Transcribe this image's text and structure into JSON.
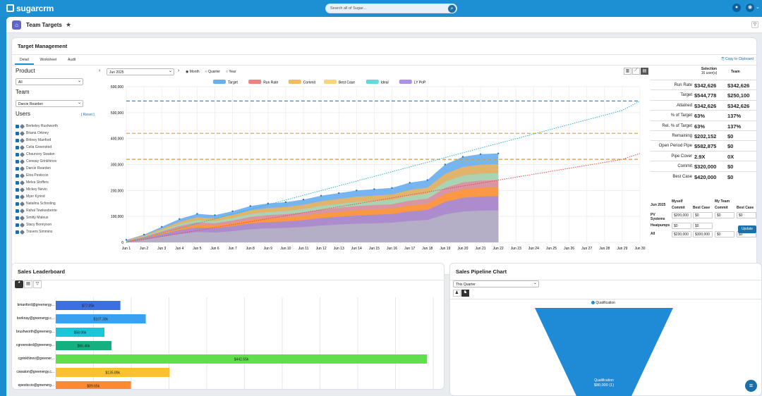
{
  "app": {
    "logo": "sugarcrm",
    "search_placeholder": "Search all of Sugar..."
  },
  "page": {
    "title": "Team Targets"
  },
  "target_management": {
    "title": "Target Management",
    "tabs": [
      "Detail",
      "Worksheet",
      "Audit"
    ],
    "copy_label": "Copy to Clipboard",
    "product_label": "Product",
    "product_value": "All",
    "team_label": "Team",
    "team_value": "Darcie Rearden",
    "users_label": "Users",
    "reset_label": "[ Reset ]",
    "users": [
      "Berkeley Rushworth",
      "Briana Orkney",
      "Britney Manford",
      "Celia Greensted",
      "Chauncey Swaton",
      "Conway Grinkhinov",
      "Darcie Rearden",
      "Elna Pesticcio",
      "Melva Stoffers",
      "Mickey Nevin",
      "Myer Kyrind",
      "Natalina Schooling",
      "Rahal Tewkesberrie",
      "Smitty Maleus",
      "Stacy Bonnyson",
      "Travers Simmins"
    ],
    "period": "Jun 2025",
    "period_options": [
      "Month",
      "Quarter",
      "Year"
    ],
    "selected_period_option": "Month"
  },
  "chart_data": {
    "type": "area",
    "legend": [
      "Target",
      "Run Rate",
      "Commit",
      "Best Case",
      "Ideal",
      "LY PoP"
    ],
    "legend_colors": [
      "#2d8ee0",
      "#e84b4b",
      "#f0a020",
      "#f5c242",
      "#26c6d0",
      "#8c5fe0"
    ],
    "x": [
      "Jun 1",
      "Jun 2",
      "Jun 3",
      "Jun 4",
      "Jun 5",
      "Jun 6",
      "Jun 7",
      "Jun 8",
      "Jun 9",
      "Jun 10",
      "Jun 11",
      "Jun 12",
      "Jun 13",
      "Jun 14",
      "Jun 15",
      "Jun 16",
      "Jun 17",
      "Jun 18",
      "Jun 19",
      "Jun 20",
      "Jun 21",
      "Jun 22",
      "Jun 23",
      "Jun 24",
      "Jun 25",
      "Jun 26",
      "Jun 27",
      "Jun 28",
      "Jun 29",
      "Jun 30"
    ],
    "ylim": [
      0,
      600000
    ],
    "yticks": [
      "0",
      "100,000",
      "200,000",
      "300,000",
      "400,000",
      "500,000",
      "600,000"
    ],
    "target_line": 544778,
    "best_case_line": 420000,
    "commit_line": 320000,
    "attained": [
      10000,
      30000,
      60000,
      90000,
      110000,
      105000,
      120000,
      140000,
      150000,
      155000,
      165000,
      180000,
      190000,
      200000,
      205000,
      210000,
      230000,
      240000,
      300000,
      330000,
      340000,
      342626
    ],
    "commit_series": [
      5000,
      20000,
      40000,
      60000,
      80000,
      80000,
      90000,
      100000,
      105000,
      110000,
      115000,
      120000,
      125000,
      130000,
      135000,
      140000,
      145000,
      150000,
      180000,
      200000,
      210000,
      215000
    ],
    "ideal": [
      0,
      18159,
      36318,
      54477,
      72636,
      90795,
      108954,
      127113,
      145272,
      163431,
      181590,
      199749,
      217908,
      236067,
      254226,
      272385,
      290544,
      308703,
      326862,
      345021,
      363180,
      381339,
      399498,
      417657,
      435816,
      453975,
      472134,
      490293,
      508452,
      544778
    ],
    "run_rate": [
      0,
      11421,
      22842,
      34263,
      45684,
      57105,
      68526,
      79947,
      91368,
      102789,
      114210,
      125631,
      137052,
      148473,
      159894,
      171315,
      182736,
      194157,
      205578,
      216999,
      228420,
      239841,
      251262,
      262683,
      274104,
      285525,
      296946,
      308367,
      319788,
      342626
    ]
  },
  "stats": {
    "col_selection": "Selection",
    "col_selection_sub": "16 user(s)",
    "col_team": "Team",
    "rows": [
      {
        "label": "Run Rate",
        "sel": "$342,626",
        "team": "$342,626"
      },
      {
        "label": "Target",
        "sel": "$544,778",
        "team": "$250,100"
      },
      {
        "label": "Attained",
        "sel": "$342,626",
        "team": "$342,626"
      },
      {
        "label": "% of Target",
        "sel": "63%",
        "team": "137%"
      },
      {
        "label": "Rel. % of Target",
        "sel": "63%",
        "team": "137%"
      },
      {
        "label": "Remaining",
        "sel": "$202,152",
        "team": "$0"
      },
      {
        "label": "Open Period Pipe",
        "sel": "$582,875",
        "team": "$0"
      },
      {
        "label": "Pipe Cover",
        "sel": "2.9X",
        "team": "0X"
      },
      {
        "label": "Commit",
        "sel": "$320,000",
        "team": "$0"
      },
      {
        "label": "Best Case",
        "sel": "$420,000",
        "team": "$0"
      }
    ],
    "commit_table": {
      "period": "Jun 2025",
      "myself": "Myself",
      "my_team": "My Team",
      "commit": "Commit",
      "best_case": "Best Case",
      "rows": [
        {
          "label": "PV Systems",
          "v": [
            "$200,000",
            "$0",
            "$0",
            "$0"
          ]
        },
        {
          "label": "Heatpumps",
          "v": [
            "$0",
            "$0",
            "",
            ""
          ]
        },
        {
          "label": "All",
          "v": [
            "$230,000",
            "$300,000",
            "$0",
            "$0"
          ]
        }
      ]
    },
    "update_label": "Update"
  },
  "leaderboard": {
    "title": "Sales Leaderboard",
    "rows": [
      {
        "name": "bmanford@greenergy...",
        "value": 77050,
        "label": "$77.05k",
        "color": "#3c6fe0"
      },
      {
        "name": "borknay@greenergy.c...",
        "value": 107300,
        "label": "$107.30k",
        "color": "#3aa0f0"
      },
      {
        "name": "brushworth@greenerg...",
        "value": 58060,
        "label": "$58.06k",
        "color": "#19c7d6"
      },
      {
        "name": "cgreensted@greenerg...",
        "value": 66460,
        "label": "$66.46k",
        "color": "#14b080"
      },
      {
        "name": "cgrinkhinov@greener...",
        "value": 442550,
        "label": "$442.55k",
        "color": "#5fe04a"
      },
      {
        "name": "cswaton@greenergy.c...",
        "value": 135890,
        "label": "$135.89k",
        "color": "#fdc02f"
      },
      {
        "name": "epesticcio@greenerg...",
        "value": 89650,
        "label": "$89.65k",
        "color": "#fd8a30"
      }
    ]
  },
  "pipeline": {
    "title": "Sales Pipeline Chart",
    "filter": "This Quarter",
    "legend": "Qualification",
    "stage_label": "Qualification",
    "stage_value": "$80,000 (1)"
  }
}
